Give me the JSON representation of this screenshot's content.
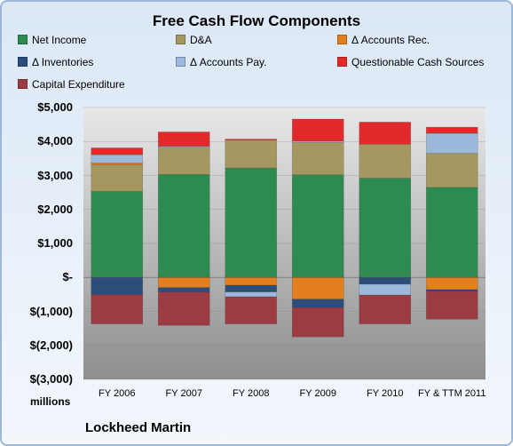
{
  "chart_data": {
    "type": "bar",
    "stacked": true,
    "title": "Free Cash Flow Components",
    "xlabel": "",
    "ylabel": "",
    "units_label": "millions",
    "company": "Lockheed Martin",
    "categories": [
      "FY 2006",
      "FY 2007",
      "FY 2008",
      "FY 2009",
      "FY 2010",
      "FY & TTM 2011"
    ],
    "ylim": [
      -3000,
      5000
    ],
    "yticks": [
      "$5,000",
      "$4,000",
      "$3,000",
      "$2,000",
      "$1,000",
      "$-",
      "$(1,000)",
      "$(2,000)",
      "$(3,000)"
    ],
    "legend_position": "top",
    "series": [
      {
        "name": "Net Income",
        "color": "#2e8b4f",
        "values": [
          2530,
          3030,
          3220,
          3020,
          2920,
          2650
        ]
      },
      {
        "name": "D&A",
        "color": "#a59760",
        "values": [
          790,
          800,
          820,
          950,
          1000,
          1000
        ]
      },
      {
        "name": "Δ Accounts Rec.",
        "color": "#e47f1d",
        "values": [
          50,
          -300,
          -230,
          -640,
          0,
          -360
        ]
      },
      {
        "name": "Δ Inventories",
        "color": "#2c4d7a",
        "values": [
          -510,
          -130,
          -200,
          -250,
          -200,
          -50
        ]
      },
      {
        "name": "Δ Accounts Pay.",
        "color": "#9cb9dc",
        "values": [
          240,
          30,
          -140,
          40,
          -320,
          590
        ]
      },
      {
        "name": "Questionable Cash Sources",
        "color": "#e32a2a",
        "values": [
          200,
          420,
          30,
          650,
          650,
          180
        ]
      },
      {
        "name": "Capital Expenditure",
        "color": "#9c3b42",
        "values": [
          -860,
          -980,
          -800,
          -860,
          -850,
          -820
        ]
      }
    ]
  }
}
